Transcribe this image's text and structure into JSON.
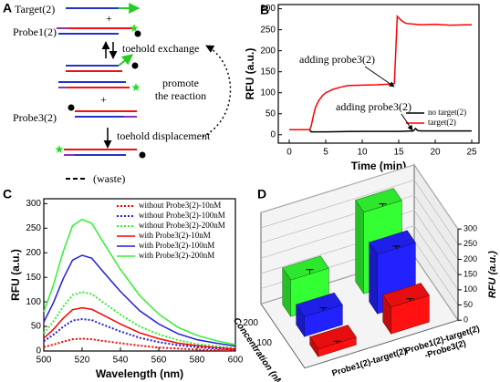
{
  "panel_a": {
    "label": "A",
    "target": "Target(2)",
    "plus": "+",
    "probe1": "Probe1(2)",
    "step1": "toehold exchange",
    "probe3": "Probe3(2)",
    "step2": "toehold displacement",
    "promote": "promote\nthe reaction",
    "waste": "(waste)"
  },
  "chart_data": [
    {
      "label": "B",
      "type": "line",
      "xlabel": "Time (min)",
      "ylabel": "RFU (a.u.)",
      "xlim": [
        -1.5,
        26
      ],
      "ylim": [
        -20,
        310
      ],
      "xticks": [
        0,
        5,
        10,
        15,
        20,
        25
      ],
      "yticks": [
        0,
        50,
        100,
        150,
        200,
        250,
        300
      ],
      "legend": "lower right",
      "annotations": [
        "adding probe3(2)",
        "adding probe3(2)"
      ],
      "series": [
        {
          "name": "no target(2)",
          "color": "#000000",
          "x": [
            0,
            2.8,
            3,
            5,
            10,
            15,
            17,
            17.3,
            17.6,
            18,
            20,
            25
          ],
          "values": [
            12,
            12,
            7,
            7,
            8,
            8,
            9,
            15,
            10,
            9,
            9,
            9
          ]
        },
        {
          "name": "target(2)",
          "color": "#ff0000",
          "x": [
            0,
            2.8,
            3,
            3.3,
            3.6,
            4,
            4.5,
            5,
            6,
            7,
            8,
            10,
            12,
            14,
            14.4,
            14.6,
            14.8,
            15,
            15.5,
            16,
            18,
            20,
            22,
            25
          ],
          "values": [
            12,
            12,
            20,
            45,
            65,
            80,
            92,
            100,
            108,
            113,
            117,
            118,
            119,
            121,
            122,
            200,
            282,
            278,
            270,
            265,
            262,
            263,
            261,
            262
          ]
        }
      ]
    },
    {
      "label": "C",
      "type": "line",
      "xlabel": "Wavelength (nm)",
      "ylabel": "RFU (a.u.)",
      "xlim": [
        500,
        600
      ],
      "ylim": [
        0,
        310
      ],
      "xticks": [
        500,
        520,
        540,
        560,
        580,
        600
      ],
      "yticks": [
        0,
        50,
        100,
        150,
        200,
        250,
        300
      ],
      "legend": "upper right",
      "x": [
        500,
        505,
        510,
        515,
        520,
        525,
        530,
        540,
        550,
        560,
        570,
        580,
        590,
        600
      ],
      "series": [
        {
          "name": "without Probe3(2)-10nM",
          "color": "#ff0000",
          "dash": true,
          "values": [
            8,
            13,
            19,
            24,
            25,
            24,
            21,
            16,
            11,
            7,
            5,
            3,
            2,
            1
          ]
        },
        {
          "name": "without Probe3(2)-100nM",
          "color": "#1f1fe0",
          "dash": true,
          "values": [
            20,
            33,
            49,
            62,
            65,
            63,
            55,
            40,
            27,
            18,
            12,
            8,
            5,
            3
          ]
        },
        {
          "name": "without Probe3(2)-200nM",
          "color": "#33ee33",
          "dash": true,
          "values": [
            36,
            60,
            90,
            114,
            120,
            116,
            102,
            74,
            50,
            34,
            22,
            14,
            10,
            6
          ]
        },
        {
          "name": "with Probe3(2)-10nM",
          "color": "#ff0000",
          "dash": false,
          "values": [
            26,
            44,
            66,
            84,
            88,
            85,
            75,
            55,
            37,
            25,
            16,
            11,
            7,
            4
          ]
        },
        {
          "name": "with Probe3(2)-100nM",
          "color": "#1f1fe0",
          "dash": false,
          "values": [
            59,
            98,
            146,
            185,
            195,
            189,
            166,
            121,
            82,
            55,
            35,
            23,
            16,
            10
          ]
        },
        {
          "name": "with Probe3(2)-200nM",
          "color": "#33ee33",
          "dash": false,
          "values": [
            80,
            134,
            201,
            255,
            268,
            260,
            228,
            166,
            113,
            75,
            48,
            32,
            21,
            13
          ]
        }
      ]
    },
    {
      "label": "D",
      "type": "bar3d",
      "categories": [
        "Probe1(2)-target(2)",
        "Probe1(2)-target(2)\n-Probe3(2)"
      ],
      "depth_label": "Concentration (nM)",
      "zlabel": "RFU (a.u.)",
      "zlim": [
        0,
        300
      ],
      "zticks": [
        0,
        50,
        100,
        150,
        200,
        250,
        300
      ],
      "series": [
        {
          "name": "200",
          "color": "#33ff33",
          "values": [
            120,
            268
          ],
          "errors": [
            15,
            8
          ]
        },
        {
          "name": "100",
          "color": "#2222ff",
          "values": [
            65,
            195
          ],
          "errors": [
            10,
            8
          ]
        },
        {
          "name": null,
          "color": "#ff1111",
          "values": [
            25,
            88
          ],
          "errors": [
            6,
            8
          ]
        }
      ]
    }
  ]
}
